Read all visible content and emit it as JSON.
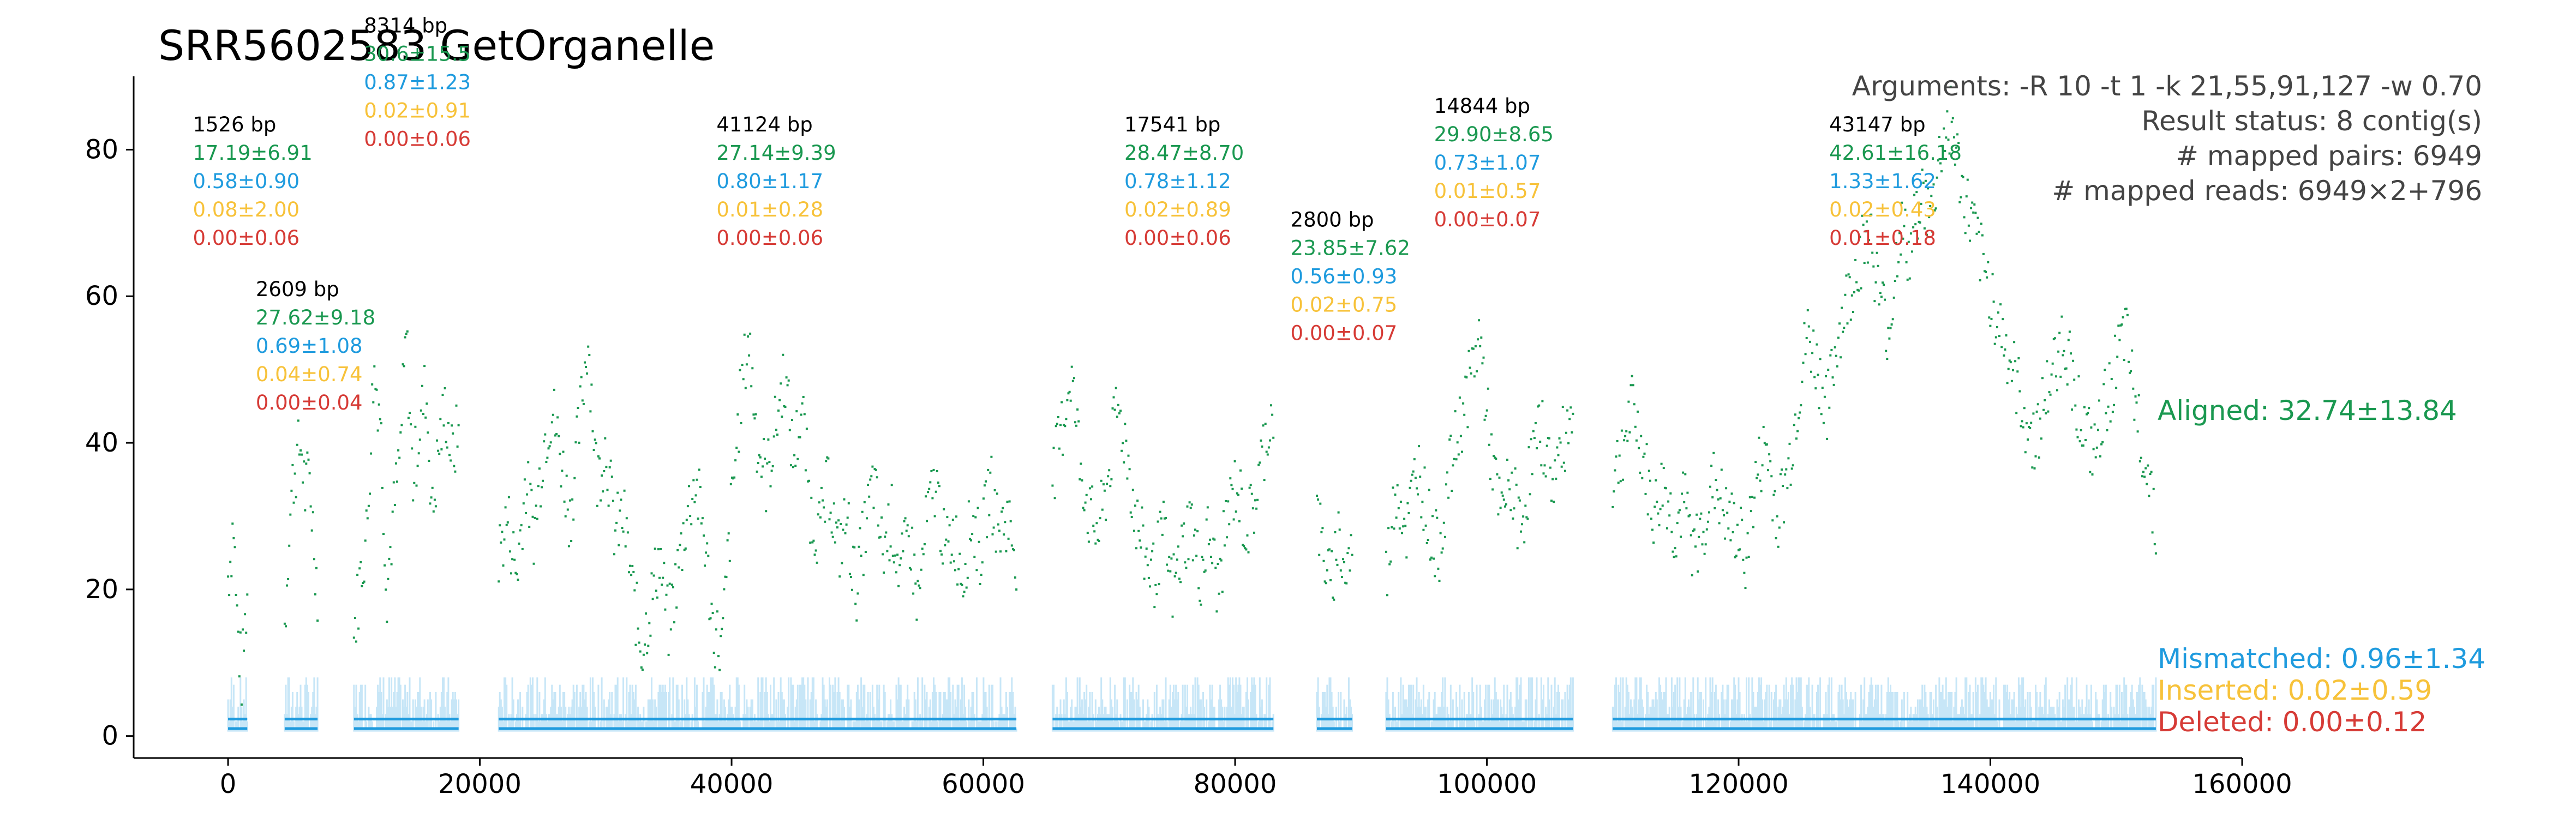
{
  "title": "SRR5602583 GetOrganelle",
  "colors": {
    "aligned": "#1a9850",
    "mismatched": "#1f9bde",
    "inserted": "#f7c23a",
    "deleted": "#d63b36",
    "length_text": "#000000",
    "axis": "#000000",
    "info_text": "#444444"
  },
  "arguments": [
    "Arguments: -R 10 -t 1 -k 21,55,91,127 -w 0.70",
    "Result status: 8 contig(s)",
    "# mapped pairs: 6949",
    "# mapped reads: 6949×2+796"
  ],
  "legend": [
    {
      "key": "aligned",
      "label": "Aligned: 32.74±13.84"
    },
    {
      "key": "mismatched",
      "label": "Mismatched: 0.96±1.34"
    },
    {
      "key": "inserted",
      "label": "Inserted: 0.02±0.59"
    },
    {
      "key": "deleted",
      "label": "Deleted: 0.00±0.12"
    }
  ],
  "chart_data": {
    "type": "scatter",
    "title": "SRR5602583 GetOrganelle",
    "xlabel": "",
    "ylabel": "",
    "xlim": [
      -7500,
      160000
    ],
    "ylim": [
      -3,
      90
    ],
    "xticks": [
      0,
      20000,
      40000,
      60000,
      80000,
      100000,
      120000,
      140000,
      160000
    ],
    "yticks": [
      0,
      20,
      40,
      60,
      80
    ],
    "grid": false,
    "legend_position": "right",
    "contigs": [
      {
        "start": 0,
        "end": 1526,
        "length": "1526 bp",
        "aligned": "17.19±6.91",
        "mismatched": "0.58±0.90",
        "inserted": "0.08±2.00",
        "deleted": "0.00±0.06",
        "label_x": -2800,
        "label_y": 82.5,
        "profile": [
          22,
          25,
          30,
          18,
          12,
          8,
          14,
          20
        ]
      },
      {
        "start": 4500,
        "end": 7109,
        "length": "2609 bp",
        "aligned": "27.62±9.18",
        "mismatched": "0.69±1.08",
        "inserted": "0.04±0.74",
        "deleted": "0.00±0.04",
        "label_x": 2200,
        "label_y": 60,
        "profile": [
          15,
          28,
          35,
          38,
          40,
          33,
          36,
          28,
          20
        ]
      },
      {
        "start": 10000,
        "end": 18314,
        "length": "8314 bp",
        "aligned": "30.6±15.5",
        "mismatched": "0.87±1.23",
        "inserted": "0.02±0.91",
        "deleted": "0.00±0.06",
        "label_x": 10800,
        "label_y": 96,
        "profile": [
          14,
          22,
          28,
          50,
          45,
          20,
          30,
          38,
          55,
          35,
          42,
          48,
          30,
          40,
          45,
          38,
          42
        ]
      },
      {
        "start": 21500,
        "end": 62624,
        "length": "41124 bp",
        "aligned": "27.14±9.39",
        "mismatched": "0.80±1.17",
        "inserted": "0.01±0.28",
        "deleted": "0.00±0.06",
        "label_x": 38800,
        "label_y": 82.5,
        "profile": [
          25,
          30,
          22,
          35,
          28,
          40,
          45,
          38,
          30,
          42,
          55,
          35,
          40,
          28,
          30,
          20,
          12,
          18,
          25,
          15,
          22,
          30,
          35,
          28,
          15,
          12,
          30,
          45,
          55,
          40,
          35,
          42,
          50,
          38,
          45,
          30,
          28,
          35,
          25,
          30,
          20,
          28,
          35,
          25,
          30,
          22,
          28,
          18,
          30,
          35,
          25,
          28,
          22,
          30,
          25,
          35,
          28,
          30,
          25
        ]
      },
      {
        "start": 65500,
        "end": 83041,
        "length": "17541 bp",
        "aligned": "28.47±8.70",
        "mismatched": "0.78±1.12",
        "inserted": "0.02±0.89",
        "deleted": "0.00±0.06",
        "label_x": 71200,
        "label_y": 82.5,
        "profile": [
          35,
          42,
          50,
          38,
          30,
          28,
          35,
          45,
          40,
          30,
          25,
          22,
          28,
          20,
          25,
          30,
          22,
          28,
          20,
          30,
          35,
          28,
          32,
          40,
          45
        ]
      },
      {
        "start": 86500,
        "end": 89300,
        "length": "2800 bp",
        "aligned": "23.85±7.62",
        "mismatched": "0.56±0.93",
        "inserted": "0.02±0.75",
        "deleted": "0.00±0.07",
        "label_x": 84400,
        "label_y": 69.5,
        "profile": [
          30,
          25,
          20,
          28,
          22,
          26
        ]
      },
      {
        "start": 92000,
        "end": 106844,
        "length": "14844 bp",
        "aligned": "29.90±8.65",
        "mismatched": "0.73±1.07",
        "inserted": "0.01±0.57",
        "deleted": "0.00±0.07",
        "label_x": 95800,
        "label_y": 85,
        "profile": [
          22,
          35,
          28,
          38,
          30,
          25,
          35,
          42,
          48,
          55,
          40,
          30,
          35,
          28,
          38,
          42,
          35,
          40,
          45
        ]
      },
      {
        "start": 110000,
        "end": 153147,
        "length": "43147 bp",
        "aligned": "42.61±16.18",
        "mismatched": "1.33±1.62",
        "inserted": "0.02±0.43",
        "deleted": "0.01±0.18",
        "label_x": 127200,
        "label_y": 82.5,
        "profile": [
          35,
          40,
          45,
          38,
          30,
          35,
          28,
          32,
          25,
          30,
          35,
          30,
          28,
          25,
          35,
          40,
          30,
          35,
          45,
          55,
          50,
          45,
          55,
          60,
          65,
          70,
          60,
          55,
          70,
          65,
          75,
          70,
          80,
          85,
          75,
          70,
          65,
          60,
          55,
          50,
          45,
          40,
          45,
          50,
          55,
          48,
          42,
          38,
          45,
          50,
          55,
          45,
          38,
          30
        ]
      }
    ]
  }
}
